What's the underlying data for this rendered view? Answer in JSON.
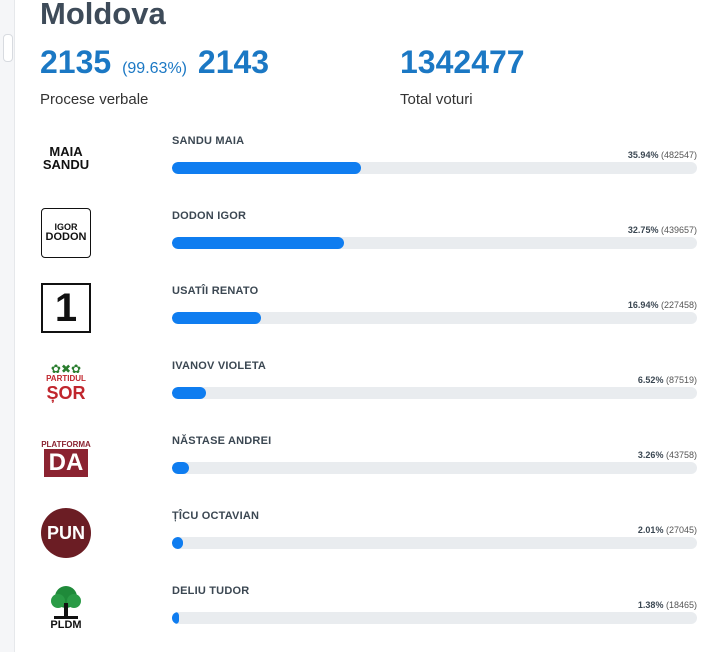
{
  "title": "Moldova",
  "stats": {
    "counted": "2135",
    "percent": "(99.63%)",
    "total": "2143",
    "counted_label": "Procese verbale",
    "total_votes": "1342477",
    "total_votes_label": "Total voturi"
  },
  "candidates": [
    {
      "name": "SANDU MAIA",
      "percent": "35.94%",
      "votes": "(482547)",
      "share": 35.94,
      "logo": {
        "line1": "MAIA",
        "line2": "SANDU"
      }
    },
    {
      "name": "DODON IGOR",
      "percent": "32.75%",
      "votes": "(439657)",
      "share": 32.75,
      "logo": {
        "line1": "IGOR",
        "line2": "DODON"
      }
    },
    {
      "name": "USATÎI RENATO",
      "percent": "16.94%",
      "votes": "(227458)",
      "share": 16.94,
      "logo": {
        "line1": "1"
      }
    },
    {
      "name": "IVANOV VIOLETA",
      "percent": "6.52%",
      "votes": "(87519)",
      "share": 6.52,
      "logo": {
        "line1": "PARTIDUL",
        "line2": "ȘOR"
      }
    },
    {
      "name": "NĂSTASE ANDREI",
      "percent": "3.26%",
      "votes": "(43758)",
      "share": 3.26,
      "logo": {
        "line1": "PLATFORMA",
        "line2": "DA"
      }
    },
    {
      "name": "ȚÎCU OCTAVIAN",
      "percent": "2.01%",
      "votes": "(27045)",
      "share": 2.01,
      "logo": {
        "line1": "PUN"
      }
    },
    {
      "name": "DELIU TUDOR",
      "percent": "1.38%",
      "votes": "(18465)",
      "share": 1.38,
      "logo": {
        "line1": "PLDM"
      }
    }
  ],
  "colors": {
    "accent": "#1b78c4",
    "bar": "#0f7df0",
    "track": "#e9ecef"
  }
}
